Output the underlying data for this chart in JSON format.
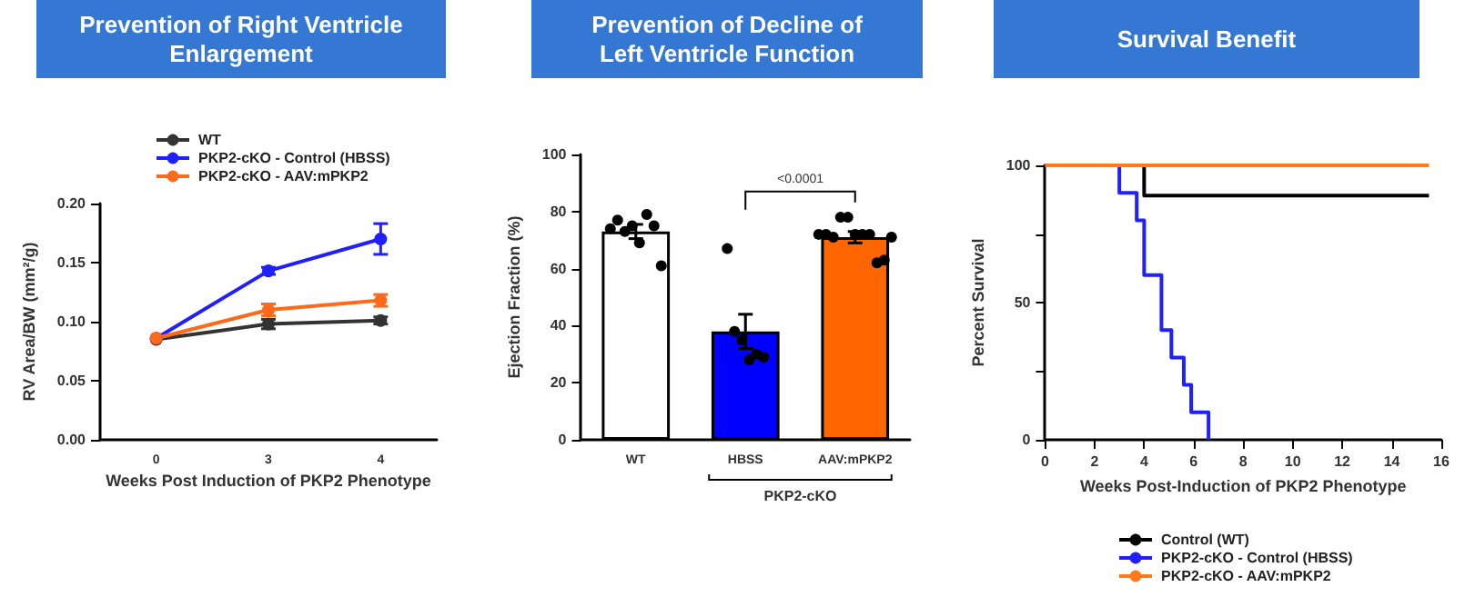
{
  "chart_data": [
    {
      "type": "line",
      "title": "Prevention of Right Ventricle Enlargement",
      "xlabel": "Weeks Post Induction of PKP2 Phenotype",
      "ylabel": "RV Area/BW (mm²/g)",
      "categories": [
        "0",
        "3",
        "4"
      ],
      "ylim": [
        0,
        0.2
      ],
      "yticks": [
        {
          "value": 0,
          "label": "0.00"
        },
        {
          "value": 0.05,
          "label": "0.05"
        },
        {
          "value": 0.1,
          "label": "0.10"
        },
        {
          "value": 0.15,
          "label": "0.15"
        },
        {
          "value": 0.2,
          "label": "0.20"
        }
      ],
      "marker": "circle",
      "legend": "top",
      "series": [
        {
          "name": "WT",
          "color": "#333333",
          "values": [
            0.085,
            0.098,
            0.101
          ],
          "errors": [
            null,
            0.004,
            0.003
          ]
        },
        {
          "name": "PKP2-cKO - Control (HBSS)",
          "color": "#1f1fff",
          "values": [
            0.086,
            0.143,
            0.17
          ],
          "errors": [
            null,
            0.003,
            0.013
          ]
        },
        {
          "name": "PKP2-cKO - AAV:mPKP2",
          "color": "#ff6a1a",
          "values": [
            0.086,
            0.11,
            0.118
          ],
          "errors": [
            null,
            0.005,
            0.005
          ]
        }
      ]
    },
    {
      "type": "bar",
      "title": "Prevention of Decline of Left Ventricle Function",
      "ylabel": "Ejection Fraction (%)",
      "categories": [
        "WT",
        "HBSS",
        "AAV:mPKP2"
      ],
      "values": [
        73,
        38,
        71
      ],
      "colors": [
        "#ffffff",
        "#0000ff",
        "#ff6600"
      ],
      "errors": [
        2.5,
        6,
        2
      ],
      "ylim": [
        0,
        100
      ],
      "yticks": [
        0,
        20,
        40,
        60,
        80,
        100
      ],
      "marker": "circle",
      "annotations": [
        "<0.0001",
        "PKP2-cKO"
      ],
      "series": [
        {
          "type": "scatter",
          "color": "#000000",
          "x": [
            "WT",
            "WT",
            "WT",
            "WT",
            "WT",
            "WT",
            "WT",
            "WT",
            "HBSS",
            "HBSS",
            "HBSS",
            "HBSS",
            "HBSS",
            "HBSS",
            "AAV:mPKP2",
            "AAV:mPKP2",
            "AAV:mPKP2",
            "AAV:mPKP2",
            "AAV:mPKP2",
            "AAV:mPKP2",
            "AAV:mPKP2",
            "AAV:mPKP2",
            "AAV:mPKP2",
            "AAV:mPKP2",
            "AAV:mPKP2"
          ],
          "values": [
            74,
            77,
            73,
            75,
            69,
            79,
            75,
            61,
            67,
            38,
            35,
            28,
            30,
            29,
            72,
            72,
            71,
            78,
            78,
            72,
            72,
            72,
            62,
            63,
            71
          ]
        }
      ]
    },
    {
      "type": "step",
      "title": "Survival Benefit",
      "xlabel": "Weeks Post-Induction of PKP2 Phenotype",
      "ylabel": "Percent Survival",
      "xlim": [
        0,
        16
      ],
      "xticks": [
        0,
        2,
        4,
        6,
        8,
        10,
        12,
        14,
        16
      ],
      "ylim": [
        0,
        100
      ],
      "yticks": [
        0,
        {
          "value": 25,
          "label": null
        },
        50,
        {
          "value": 75,
          "label": null
        },
        100
      ],
      "legend": "bottom",
      "series": [
        {
          "name": "Control (WT)",
          "color": "#000000",
          "x": [
            0,
            4,
            15.5
          ],
          "values": [
            100,
            89,
            89
          ]
        },
        {
          "name": "PKP2-cKO - Control (HBSS)",
          "color": "#1f1fff",
          "x": [
            0,
            3,
            3.7,
            4,
            4.7,
            5.1,
            5.6,
            5.9,
            6.6
          ],
          "values": [
            100,
            90,
            80,
            60,
            40,
            30,
            20,
            10,
            0
          ]
        },
        {
          "name": "PKP2-cKO - AAV:mPKP2",
          "color": "#ff7a1a",
          "x": [
            0,
            15.5
          ],
          "values": [
            100,
            100
          ]
        }
      ]
    }
  ]
}
